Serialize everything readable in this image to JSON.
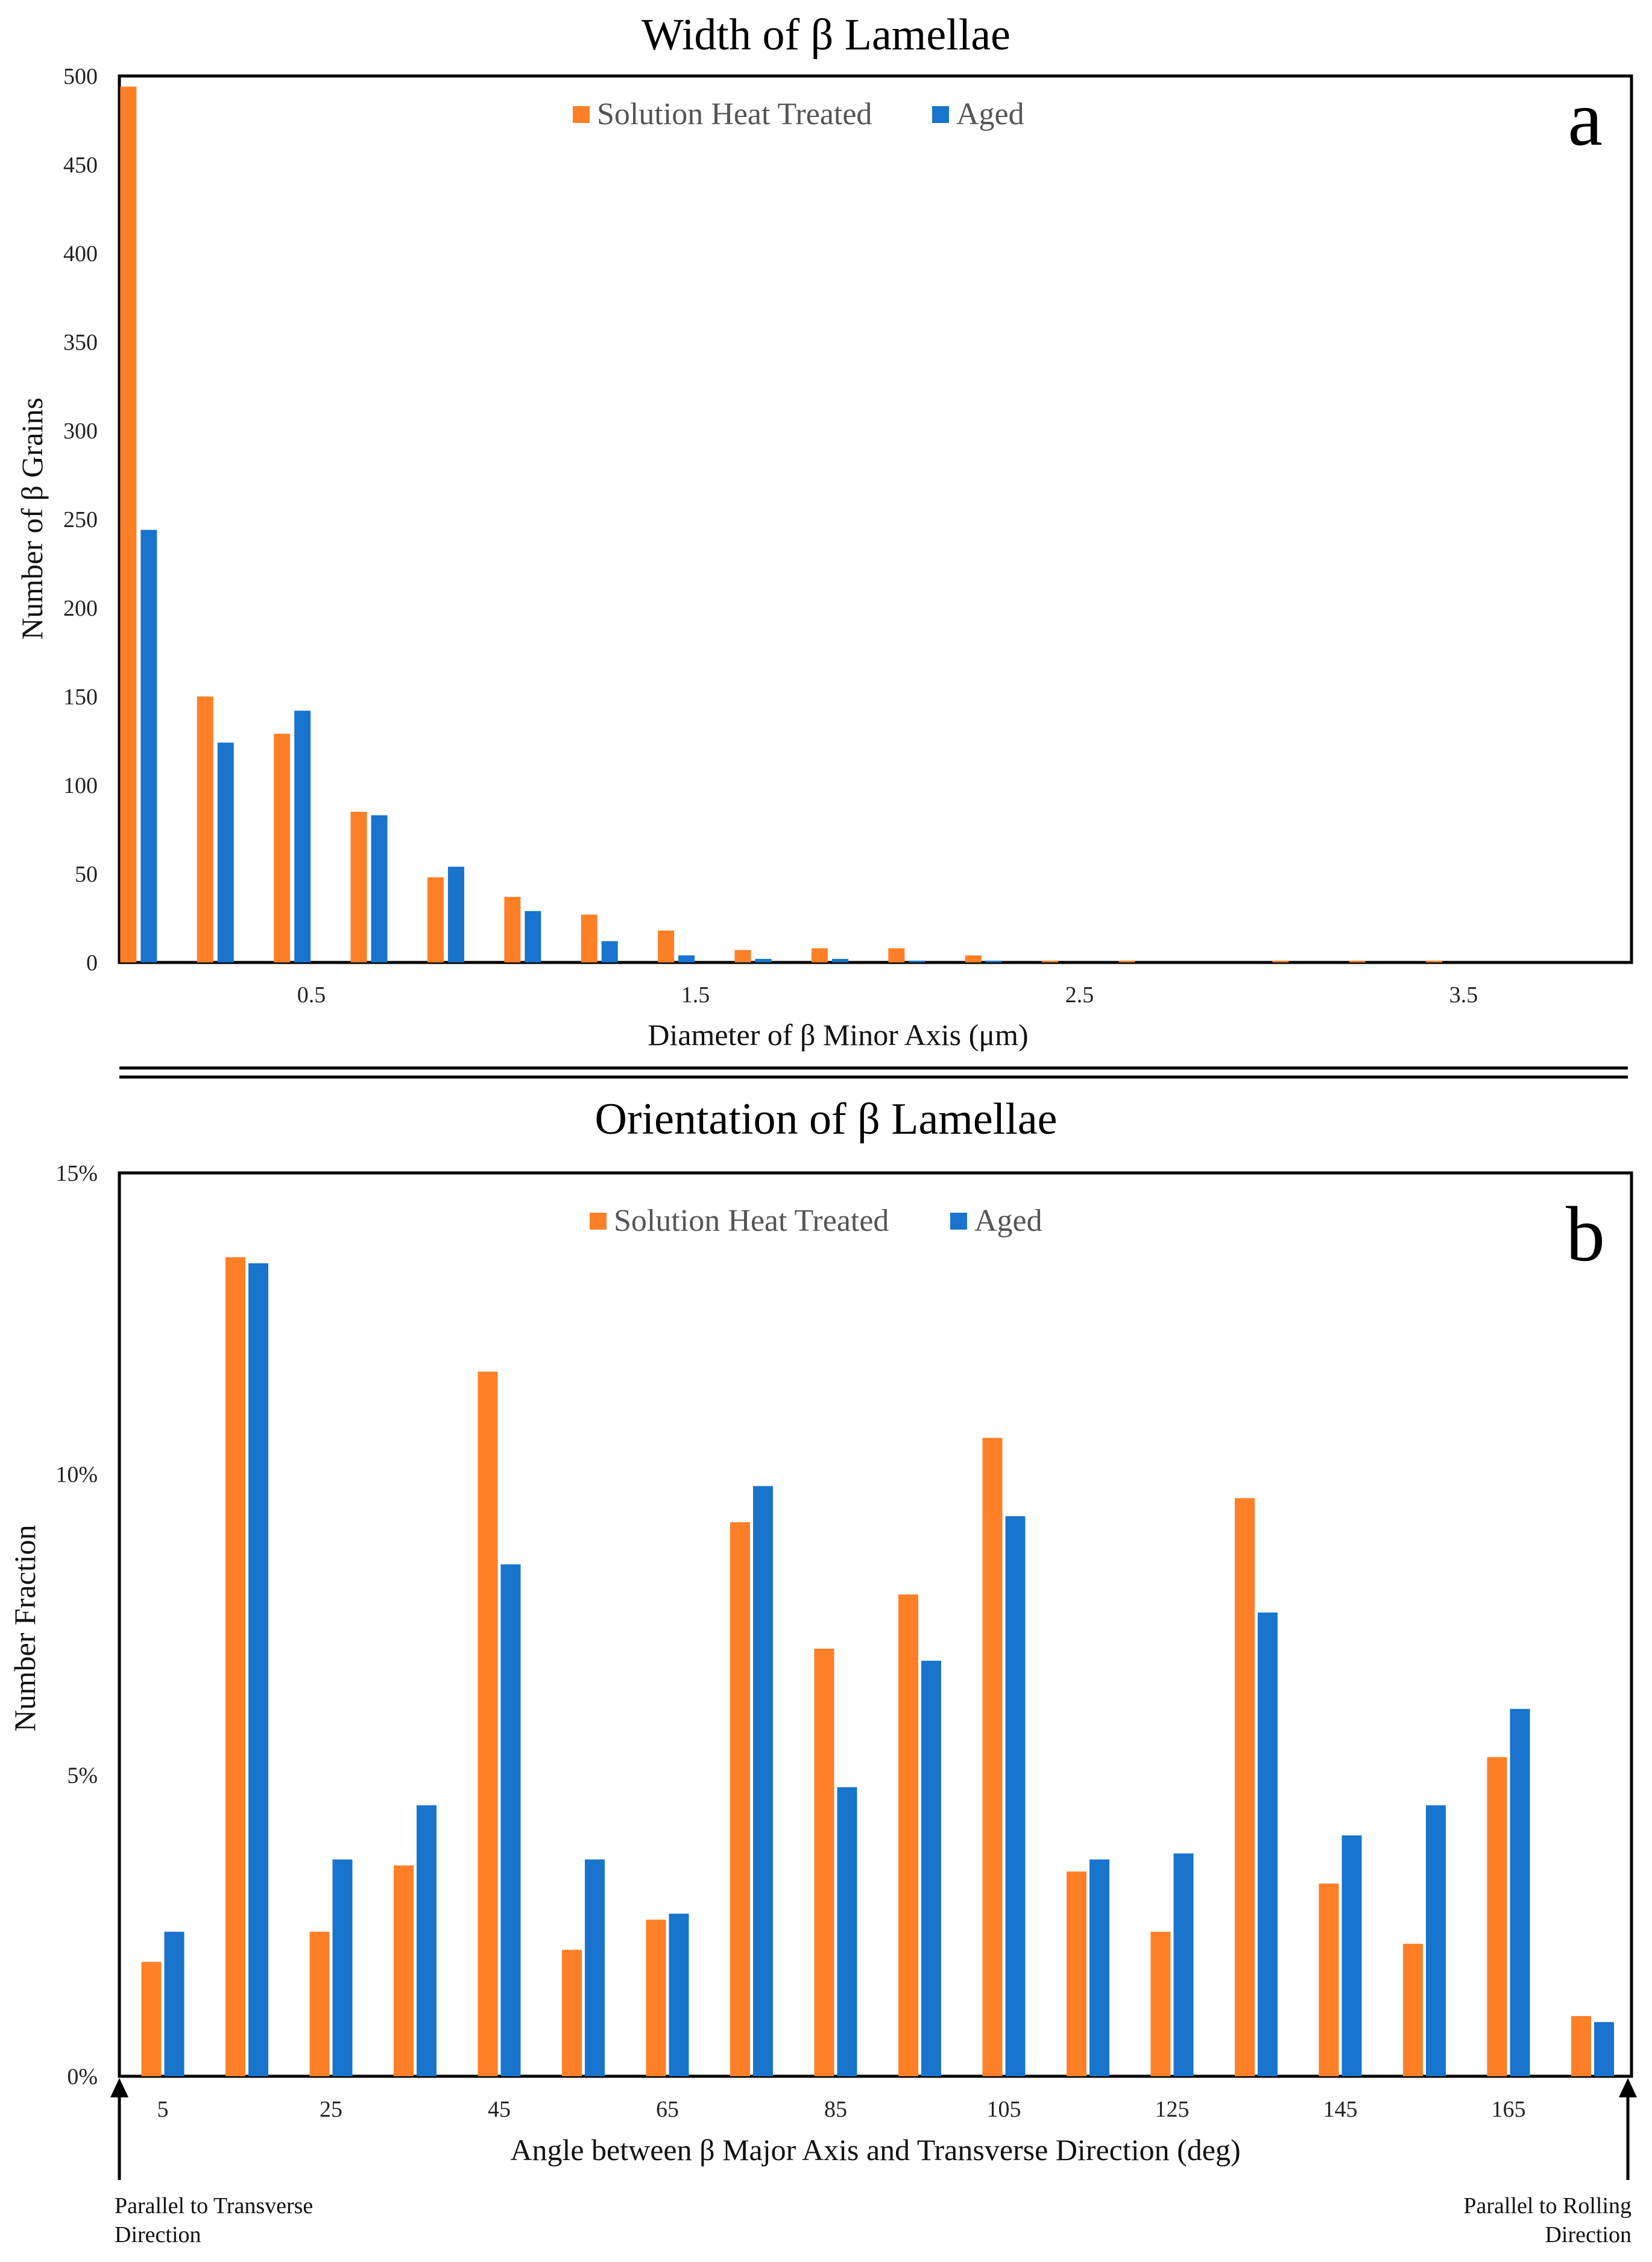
{
  "colors": {
    "sht": "#FF7F27",
    "aged": "#1874CD",
    "axis": "#000000"
  },
  "chart_data": [
    {
      "type": "bar",
      "panel": "a",
      "title": "Width of β Lamellae",
      "xlabel": "Diameter of β Minor Axis (μm)",
      "ylabel": "Number of  β Grains",
      "ylim": [
        0,
        500
      ],
      "yticks": [
        "0",
        "50",
        "100",
        "150",
        "200",
        "250",
        "300",
        "350",
        "400",
        "450",
        "500"
      ],
      "xlim": [
        0,
        3.9
      ],
      "xticks": [
        "0.5",
        "1.5",
        "2.5",
        "3.5"
      ],
      "legend": [
        "Solution Heat Treated",
        "Aged"
      ],
      "legend_position": "top-center",
      "categories": [
        0.05,
        0.25,
        0.45,
        0.65,
        0.85,
        1.05,
        1.25,
        1.45,
        1.65,
        1.85,
        2.05,
        2.25,
        2.45,
        2.65,
        2.85,
        3.05,
        3.25,
        3.45,
        3.65,
        3.85
      ],
      "series": [
        {
          "name": "Solution Heat Treated",
          "values": [
            494,
            150,
            129,
            85,
            48,
            37,
            27,
            18,
            7,
            8,
            8,
            4,
            1,
            1,
            0,
            1,
            1,
            1,
            0,
            0
          ]
        },
        {
          "name": "Aged",
          "values": [
            244,
            124,
            142,
            83,
            54,
            29,
            12,
            4,
            2,
            2,
            1,
            1,
            0,
            0,
            0,
            0,
            0,
            0,
            0,
            0
          ]
        }
      ]
    },
    {
      "type": "bar",
      "panel": "b",
      "title": "Orientation of β Lamellae",
      "xlabel": "Angle between β Major Axis and Transverse Direction (deg)",
      "ylabel": "Number Fraction",
      "ylim": [
        0,
        15
      ],
      "yticks": [
        "0%",
        "5%",
        "10%",
        "15%"
      ],
      "xticks": [
        "5",
        "25",
        "45",
        "65",
        "85",
        "105",
        "125",
        "145",
        "165"
      ],
      "legend": [
        "Solution Heat Treated",
        "Aged"
      ],
      "legend_position": "top-center",
      "categories": [
        5,
        15,
        25,
        35,
        45,
        55,
        65,
        75,
        85,
        95,
        105,
        115,
        125,
        135,
        145,
        155,
        165,
        175
      ],
      "series": [
        {
          "name": "Solution Heat Treated",
          "values": [
            1.9,
            13.6,
            2.4,
            3.5,
            11.7,
            2.1,
            2.6,
            9.2,
            7.1,
            8.0,
            10.6,
            3.4,
            2.4,
            9.6,
            3.2,
            2.2,
            5.3,
            1.0
          ]
        },
        {
          "name": "Aged",
          "values": [
            2.4,
            13.5,
            3.6,
            4.5,
            8.5,
            3.6,
            2.7,
            9.8,
            4.8,
            6.9,
            9.3,
            3.6,
            3.7,
            7.7,
            4.0,
            4.5,
            6.1,
            0.9
          ]
        }
      ],
      "annotations": {
        "left": "Parallel to Transverse Direction",
        "right": "Parallel to Rolling Direction"
      }
    }
  ]
}
